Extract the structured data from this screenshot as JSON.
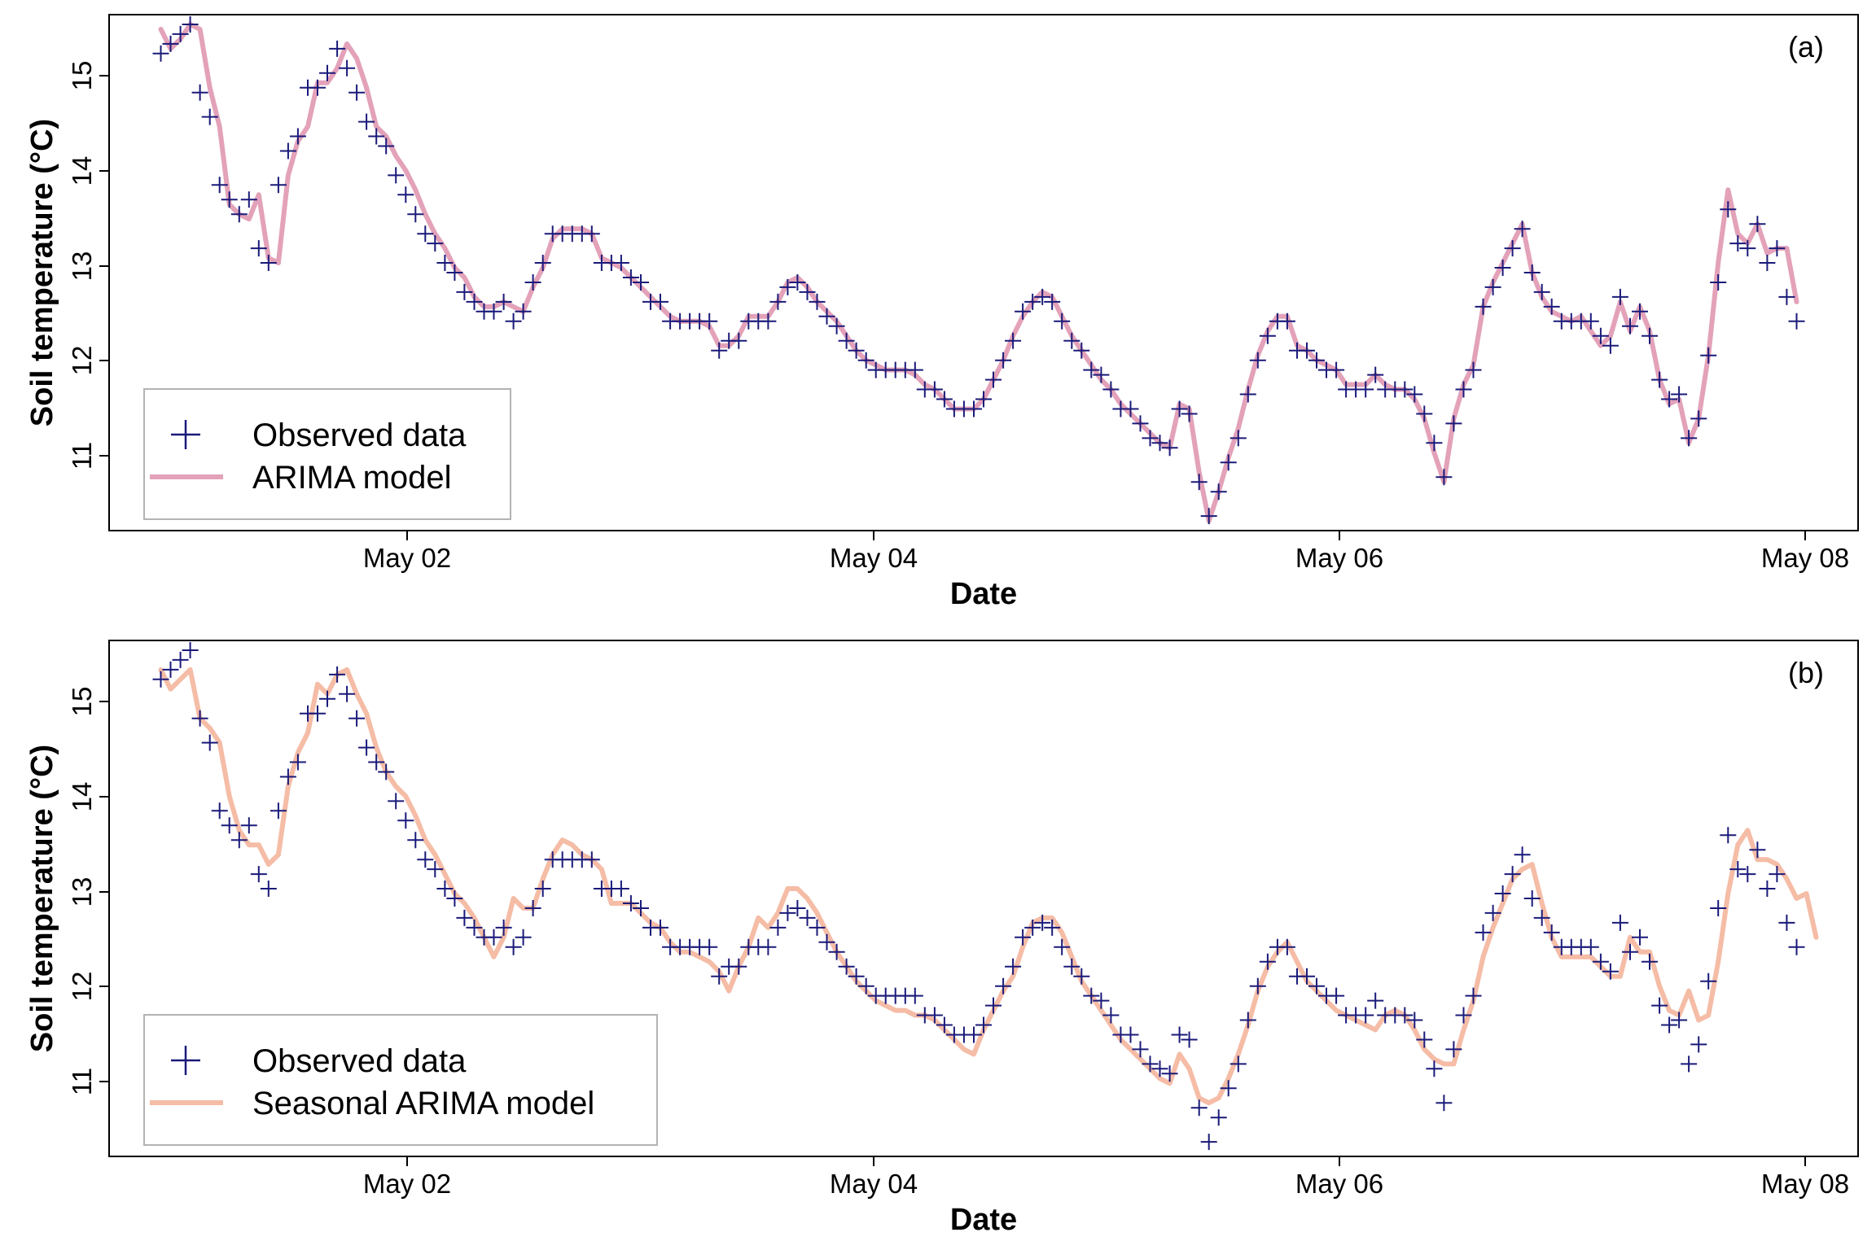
{
  "chart_data": [
    {
      "type": "line",
      "panel_label": "(a)",
      "xlabel": "Date",
      "ylabel": "Soil temperature (°C)",
      "x_ticks": [
        "May 02",
        "May 04",
        "May 06",
        "May 08"
      ],
      "y_ticks": [
        "11",
        "12",
        "13",
        "14",
        "15"
      ],
      "xlim": [
        0.78,
        8.22
      ],
      "ylim": [
        10.25,
        15.55
      ],
      "legend_position": "bottom-left",
      "colors": {
        "observed": "#1a1a7a",
        "model": "#e3a2b9"
      },
      "series": [
        {
          "name": "Observed data",
          "marker": "plus",
          "x_start": 1.0,
          "x_step": 0.041667,
          "values": [
            15.15,
            15.25,
            15.35,
            15.45,
            14.75,
            14.5,
            13.8,
            13.65,
            13.5,
            13.65,
            13.15,
            13.0,
            13.8,
            14.15,
            14.3,
            14.8,
            14.8,
            14.95,
            15.2,
            15.0,
            14.75,
            14.45,
            14.3,
            14.2,
            13.9,
            13.7,
            13.5,
            13.3,
            13.2,
            13.0,
            12.9,
            12.7,
            12.6,
            12.5,
            12.5,
            12.6,
            12.4,
            12.5,
            12.8,
            13.0,
            13.3,
            13.3,
            13.3,
            13.3,
            13.3,
            13.0,
            13.0,
            13.0,
            12.85,
            12.8,
            12.6,
            12.6,
            12.4,
            12.4,
            12.4,
            12.4,
            12.4,
            12.1,
            12.2,
            12.2,
            12.4,
            12.4,
            12.4,
            12.6,
            12.75,
            12.8,
            12.7,
            12.6,
            12.45,
            12.35,
            12.2,
            12.1,
            12.0,
            11.9,
            11.9,
            11.9,
            11.9,
            11.9,
            11.7,
            11.7,
            11.6,
            11.5,
            11.5,
            11.5,
            11.6,
            11.8,
            12.0,
            12.2,
            12.5,
            12.6,
            12.65,
            12.6,
            12.4,
            12.2,
            12.1,
            11.9,
            11.85,
            11.7,
            11.5,
            11.5,
            11.35,
            11.2,
            11.15,
            11.1,
            11.5,
            11.45,
            10.75,
            10.4,
            10.65,
            10.95,
            11.2,
            11.65,
            12.0,
            12.25,
            12.4,
            12.4,
            12.1,
            12.1,
            12.0,
            11.9,
            11.9,
            11.7,
            11.7,
            11.7,
            11.85,
            11.7,
            11.7,
            11.7,
            11.65,
            11.45,
            11.15,
            10.8,
            11.35,
            11.7,
            11.9,
            12.55,
            12.75,
            12.95,
            13.15,
            13.35,
            12.9,
            12.7,
            12.55,
            12.4,
            12.4,
            12.4,
            12.4,
            12.25,
            12.15,
            12.65,
            12.35,
            12.5,
            12.25,
            11.8,
            11.6,
            11.65,
            11.2,
            11.4,
            12.05,
            12.8,
            13.55,
            13.2,
            13.15,
            13.4,
            13.0,
            13.15,
            12.65,
            12.4
          ]
        },
        {
          "name": "ARIMA model",
          "marker": "line",
          "x_start": 1.0,
          "x_step": 0.041667,
          "values": [
            15.4,
            15.2,
            15.3,
            15.45,
            15.4,
            14.8,
            14.4,
            13.6,
            13.5,
            13.45,
            13.7,
            13.05,
            13.0,
            13.9,
            14.25,
            14.4,
            14.85,
            14.85,
            15.0,
            15.25,
            15.1,
            14.8,
            14.4,
            14.3,
            14.1,
            13.95,
            13.75,
            13.5,
            13.3,
            13.15,
            12.95,
            12.85,
            12.65,
            12.55,
            12.55,
            12.6,
            12.55,
            12.5,
            12.75,
            12.95,
            13.25,
            13.35,
            13.35,
            13.35,
            13.3,
            13.05,
            13.0,
            12.95,
            12.85,
            12.75,
            12.65,
            12.55,
            12.45,
            12.4,
            12.4,
            12.4,
            12.35,
            12.15,
            12.15,
            12.25,
            12.45,
            12.45,
            12.45,
            12.6,
            12.8,
            12.85,
            12.75,
            12.6,
            12.5,
            12.4,
            12.25,
            12.1,
            12.0,
            11.95,
            11.9,
            11.9,
            11.9,
            11.85,
            11.75,
            11.7,
            11.6,
            11.5,
            11.5,
            11.5,
            11.6,
            11.8,
            12.0,
            12.25,
            12.45,
            12.6,
            12.7,
            12.65,
            12.45,
            12.25,
            12.1,
            11.95,
            11.8,
            11.7,
            11.55,
            11.45,
            11.35,
            11.25,
            11.15,
            11.1,
            11.55,
            11.5,
            10.85,
            10.35,
            10.65,
            11.0,
            11.3,
            11.7,
            12.05,
            12.3,
            12.45,
            12.45,
            12.15,
            12.1,
            12.0,
            11.95,
            11.9,
            11.75,
            11.75,
            11.75,
            11.85,
            11.75,
            11.7,
            11.7,
            11.6,
            11.4,
            11.05,
            10.75,
            11.4,
            11.75,
            11.95,
            12.55,
            12.8,
            13.0,
            13.2,
            13.4,
            12.9,
            12.65,
            12.5,
            12.45,
            12.4,
            12.45,
            12.3,
            12.15,
            12.25,
            12.6,
            12.3,
            12.55,
            12.3,
            11.8,
            11.55,
            11.6,
            11.15,
            11.4,
            12.05,
            13.0,
            13.75,
            13.3,
            13.2,
            13.4,
            13.1,
            13.15,
            13.15,
            12.6
          ]
        }
      ]
    },
    {
      "type": "line",
      "panel_label": "(b)",
      "xlabel": "Date",
      "ylabel": "Soil temperature (°C)",
      "x_ticks": [
        "May 02",
        "May 04",
        "May 06",
        "May 08"
      ],
      "y_ticks": [
        "11",
        "12",
        "13",
        "14",
        "15"
      ],
      "xlim": [
        0.78,
        8.22
      ],
      "ylim": [
        10.25,
        15.55
      ],
      "legend_position": "bottom-left",
      "colors": {
        "observed": "#1a1a7a",
        "model": "#f5bca6"
      },
      "series": [
        {
          "name": "Observed data",
          "marker": "plus",
          "x_start": 1.0,
          "x_step": 0.041667,
          "values": [
            15.15,
            15.25,
            15.35,
            15.45,
            14.75,
            14.5,
            13.8,
            13.65,
            13.5,
            13.65,
            13.15,
            13.0,
            13.8,
            14.15,
            14.3,
            14.8,
            14.8,
            14.95,
            15.2,
            15.0,
            14.75,
            14.45,
            14.3,
            14.2,
            13.9,
            13.7,
            13.5,
            13.3,
            13.2,
            13.0,
            12.9,
            12.7,
            12.6,
            12.5,
            12.5,
            12.6,
            12.4,
            12.5,
            12.8,
            13.0,
            13.3,
            13.3,
            13.3,
            13.3,
            13.3,
            13.0,
            13.0,
            13.0,
            12.85,
            12.8,
            12.6,
            12.6,
            12.4,
            12.4,
            12.4,
            12.4,
            12.4,
            12.1,
            12.2,
            12.2,
            12.4,
            12.4,
            12.4,
            12.6,
            12.75,
            12.8,
            12.7,
            12.6,
            12.45,
            12.35,
            12.2,
            12.1,
            12.0,
            11.9,
            11.9,
            11.9,
            11.9,
            11.9,
            11.7,
            11.7,
            11.6,
            11.5,
            11.5,
            11.5,
            11.6,
            11.8,
            12.0,
            12.2,
            12.5,
            12.6,
            12.65,
            12.6,
            12.4,
            12.2,
            12.1,
            11.9,
            11.85,
            11.7,
            11.5,
            11.5,
            11.35,
            11.2,
            11.15,
            11.1,
            11.5,
            11.45,
            10.75,
            10.4,
            10.65,
            10.95,
            11.2,
            11.65,
            12.0,
            12.25,
            12.4,
            12.4,
            12.1,
            12.1,
            12.0,
            11.9,
            11.9,
            11.7,
            11.7,
            11.7,
            11.85,
            11.7,
            11.7,
            11.7,
            11.65,
            11.45,
            11.15,
            10.8,
            11.35,
            11.7,
            11.9,
            12.55,
            12.75,
            12.95,
            13.15,
            13.35,
            12.9,
            12.7,
            12.55,
            12.4,
            12.4,
            12.4,
            12.4,
            12.25,
            12.15,
            12.65,
            12.35,
            12.5,
            12.25,
            11.8,
            11.6,
            11.65,
            11.2,
            11.4,
            12.05,
            12.8,
            13.55,
            13.2,
            13.15,
            13.4,
            13.0,
            13.15,
            12.65,
            12.4
          ]
        },
        {
          "name": "Seasonal ARIMA model",
          "marker": "line",
          "x_start": 1.0,
          "x_step": 0.041667,
          "values": [
            15.25,
            15.05,
            15.15,
            15.25,
            14.75,
            14.65,
            14.5,
            13.95,
            13.6,
            13.45,
            13.45,
            13.25,
            13.35,
            14.05,
            14.4,
            14.6,
            15.1,
            15.0,
            15.2,
            15.25,
            15.0,
            14.8,
            14.45,
            14.2,
            14.05,
            13.95,
            13.75,
            13.5,
            13.35,
            13.15,
            12.95,
            12.85,
            12.7,
            12.5,
            12.3,
            12.5,
            12.9,
            12.8,
            12.8,
            13.1,
            13.35,
            13.5,
            13.45,
            13.35,
            13.3,
            13.2,
            12.85,
            12.85,
            12.85,
            12.75,
            12.65,
            12.6,
            12.45,
            12.35,
            12.35,
            12.3,
            12.25,
            12.15,
            11.95,
            12.2,
            12.4,
            12.7,
            12.6,
            12.75,
            13.0,
            13.0,
            12.9,
            12.75,
            12.55,
            12.35,
            12.2,
            12.05,
            11.95,
            11.85,
            11.8,
            11.75,
            11.75,
            11.7,
            11.7,
            11.65,
            11.55,
            11.45,
            11.35,
            11.3,
            11.55,
            11.75,
            11.95,
            12.1,
            12.4,
            12.65,
            12.7,
            12.7,
            12.55,
            12.3,
            12.05,
            11.9,
            11.75,
            11.6,
            11.45,
            11.35,
            11.25,
            11.15,
            11.05,
            11.0,
            11.3,
            11.15,
            10.85,
            10.8,
            10.85,
            11.05,
            11.3,
            11.6,
            11.95,
            12.2,
            12.35,
            12.45,
            12.25,
            12.05,
            11.95,
            11.85,
            11.75,
            11.7,
            11.65,
            11.6,
            11.55,
            11.7,
            11.75,
            11.7,
            11.55,
            11.35,
            11.25,
            11.2,
            11.2,
            11.55,
            11.85,
            12.3,
            12.6,
            12.85,
            13.1,
            13.2,
            13.25,
            12.85,
            12.5,
            12.3,
            12.3,
            12.3,
            12.3,
            12.2,
            12.1,
            12.1,
            12.5,
            12.35,
            12.35,
            12.0,
            11.75,
            11.7,
            11.95,
            11.65,
            11.7,
            12.25,
            12.95,
            13.45,
            13.6,
            13.3,
            13.3,
            13.25,
            13.1,
            12.9,
            12.95,
            12.5
          ]
        }
      ]
    }
  ]
}
